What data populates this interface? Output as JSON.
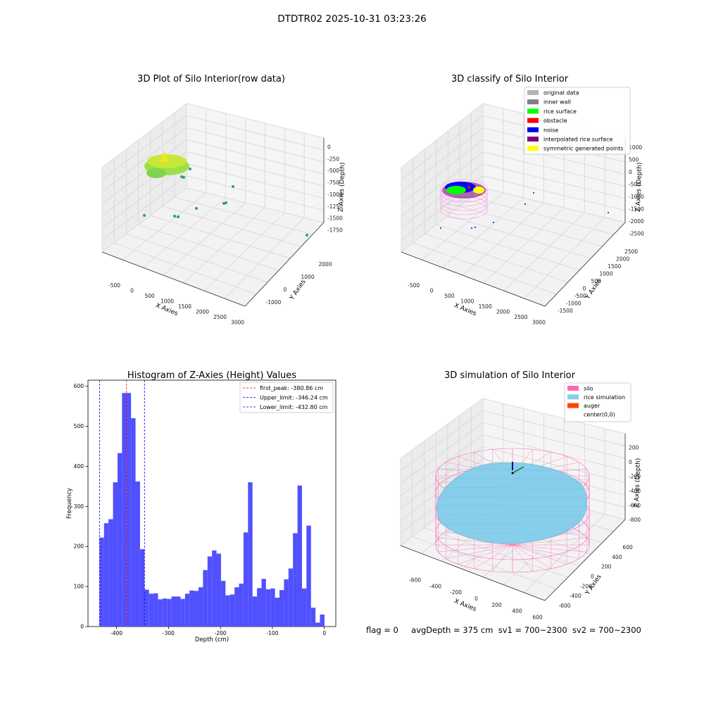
{
  "figure_title": "DTDTR02 2025-10-31 03:23:26",
  "footer": {
    "flag": "flag = 0",
    "avg_depth": "avgDepth = 375 cm",
    "sv1": "sv1 = 700~2300",
    "sv2": "sv2 = 700~2300"
  },
  "colors": {
    "histogram_bar": "#5050ff",
    "first_peak_line": "#ff0000",
    "limit_lines": "#0000ff",
    "pane": "#f2f2f2",
    "silo": "#ff69b4",
    "rice_simulation": "#87ceeb",
    "auger": "#ff4500"
  },
  "chart_data": [
    {
      "type": "scatter",
      "subtype": "3d",
      "title": "3D Plot of Silo Interior(row data)",
      "xlabel": "X Axies",
      "ylabel": "Y Axies",
      "zlabel": "Z Axies (Depth)",
      "x_ticks": [
        "-500",
        "0",
        "500",
        "1000",
        "1500",
        "2000",
        "2500",
        "3000"
      ],
      "y_ticks": [
        "-1000",
        "0",
        "1000",
        "2000"
      ],
      "z_ticks": [
        "0",
        "-250",
        "-500",
        "-750",
        "-1000",
        "-1250",
        "-1500",
        "-1750"
      ],
      "colormap": "viridis",
      "grid": true
    },
    {
      "type": "scatter",
      "subtype": "3d",
      "title": "3D classify of Silo Interior",
      "xlabel": "X Axies",
      "ylabel": "Y Axies",
      "zlabel": "Z Axies (Depth)",
      "x_ticks": [
        "-500",
        "0",
        "500",
        "1000",
        "1500",
        "2000",
        "2500",
        "3000"
      ],
      "y_ticks": [
        "-1500",
        "-1000",
        "-500",
        "0",
        "500",
        "1000",
        "1500",
        "2000",
        "2500"
      ],
      "z_ticks": [
        "1000",
        "500",
        "0",
        "-500",
        "-1000",
        "-1500",
        "-2000",
        "-2500"
      ],
      "legend_position": "top-right",
      "legend": [
        {
          "label": "original data",
          "color": "#b3b3b3"
        },
        {
          "label": "inner wall",
          "color": "#808080"
        },
        {
          "label": "rice surface",
          "color": "#00ff00"
        },
        {
          "label": "obstacle",
          "color": "#ff0000"
        },
        {
          "label": "noise",
          "color": "#0000ff"
        },
        {
          "label": "interpolated rice surface",
          "color": "#800080"
        },
        {
          "label": "symmetric generated points",
          "color": "#ffff00"
        }
      ],
      "grid": true
    },
    {
      "type": "bar",
      "subtype": "histogram",
      "title": "Histogram of Z-Axies (Height) Values",
      "xlabel": "Depth (cm)",
      "ylabel": "Frequency",
      "xlim": [
        -455,
        22
      ],
      "ylim": [
        0,
        615
      ],
      "x_ticks": [
        -400,
        -300,
        -200,
        -100,
        0
      ],
      "y_ticks": [
        0,
        100,
        200,
        300,
        400,
        500,
        600
      ],
      "bin_start": -432.8,
      "bin_width": 8.66,
      "values": [
        222,
        258,
        268,
        360,
        433,
        583,
        583,
        520,
        362,
        193,
        92,
        82,
        83,
        68,
        70,
        69,
        75,
        75,
        69,
        82,
        90,
        89,
        98,
        141,
        175,
        190,
        182,
        114,
        78,
        80,
        98,
        107,
        235,
        360,
        75,
        96,
        119,
        93,
        95,
        72,
        91,
        118,
        145,
        233,
        352,
        95,
        252,
        47,
        10,
        30
      ],
      "vlines": [
        {
          "label": "first_peak: -380.86 cm",
          "x": -380.86,
          "color": "#ff0000"
        },
        {
          "label": "Upper_limit: -346.24 cm",
          "x": -346.24,
          "color": "#0000ff"
        },
        {
          "label": "Lower_limit: -432.80 cm",
          "x": -432.8,
          "color": "#0000ff"
        }
      ],
      "legend_position": "top-right",
      "grid": false
    },
    {
      "type": "scatter",
      "subtype": "3d-surface",
      "title": "3D simulation of Silo Interior",
      "xlabel": "X Axies",
      "ylabel": "Y Axies",
      "zlabel": "Z Axies (Depth)",
      "x_ticks": [
        "-600",
        "-400",
        "-200",
        "0",
        "200",
        "400",
        "600"
      ],
      "y_ticks": [
        "-600",
        "-400",
        "-200",
        "0",
        "200",
        "400",
        "600"
      ],
      "z_ticks": [
        "200",
        "0",
        "-200",
        "-400",
        "-600",
        "-800"
      ],
      "legend_position": "top-right",
      "legend": [
        {
          "label": "silo",
          "color": "#ff69b4"
        },
        {
          "label": "rice simulation",
          "color": "#87ceeb"
        },
        {
          "label": "auger",
          "color": "#ff4500"
        },
        {
          "label": "center(0,0)",
          "color": ""
        }
      ],
      "grid": true
    }
  ]
}
